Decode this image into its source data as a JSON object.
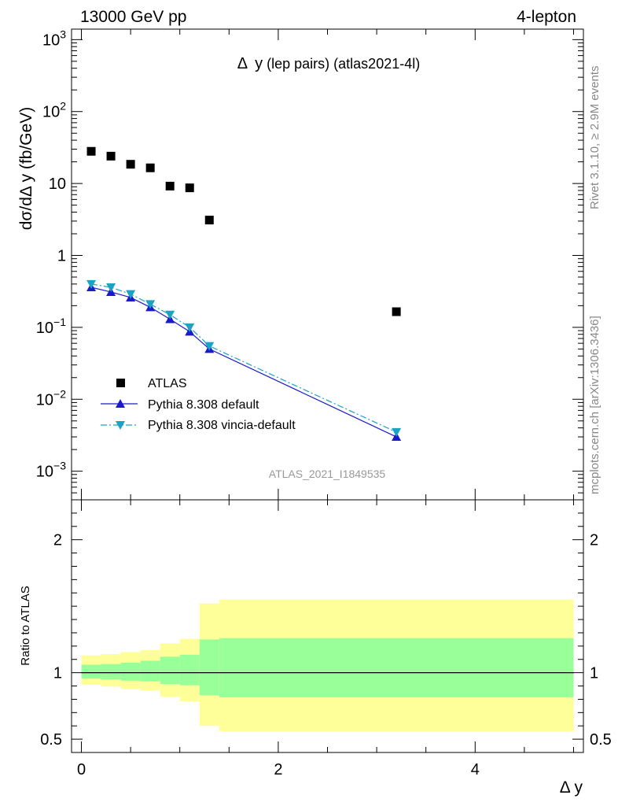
{
  "header": {
    "left": "13000 GeV pp",
    "right": "4-lepton"
  },
  "plot_title": {
    "delta": "Δ",
    "var": "y",
    "rest": "(lep pairs) (atlas2021-4l)"
  },
  "side_text": {
    "rivet": "Rivet 3.1.10, ≥ 2.9M events",
    "mcplots": "mcplots.cern.ch [arXiv:1306.3436]"
  },
  "analysis_label": "ATLAS_2021_I1849535",
  "colors": {
    "data": "#000000",
    "pythia_default": "#1a1acc",
    "vincia": "#1aa3c3",
    "band_inner": "#99ff99",
    "band_outer": "#ffff99"
  },
  "chart_data": [
    {
      "type": "scatter",
      "yscale": "log",
      "ylabel": "dσ/dΔ y (fb/GeV)",
      "xlim": [
        -0.1,
        5.1
      ],
      "ylim": [
        0.0004,
        1400
      ],
      "y_ticks": [
        {
          "base": "10",
          "exp": "3",
          "value": 1000
        },
        {
          "base": "10",
          "exp": "2",
          "value": 100
        },
        {
          "base": "10",
          "exp": "",
          "value": 10
        },
        {
          "base": "1",
          "exp": "",
          "value": 1
        },
        {
          "base": "10",
          "exp": "−1",
          "value": 0.1
        },
        {
          "base": "10",
          "exp": "−2",
          "value": 0.01
        },
        {
          "base": "10",
          "exp": "−3",
          "value": 0.001
        }
      ],
      "legend": {
        "position": "lower-left",
        "entries": [
          "ATLAS",
          "Pythia 8.308 default",
          "Pythia 8.308 vincia-default"
        ]
      },
      "series": [
        {
          "name": "ATLAS",
          "style": "markers-square",
          "x": [
            0.1,
            0.3,
            0.5,
            0.7,
            0.9,
            1.1,
            1.3,
            3.2
          ],
          "y": [
            28,
            24,
            18.5,
            16.5,
            9.2,
            8.7,
            3.1,
            0.165
          ]
        },
        {
          "name": "Pythia 8.308 default",
          "style": "line-triangle-up",
          "x": [
            0.1,
            0.3,
            0.5,
            0.7,
            0.9,
            1.1,
            1.3,
            3.2
          ],
          "y": [
            0.36,
            0.31,
            0.26,
            0.19,
            0.13,
            0.087,
            0.05,
            0.003
          ]
        },
        {
          "name": "Pythia 8.308 vincia-default",
          "style": "dashdot-triangle-down",
          "x": [
            0.1,
            0.3,
            0.5,
            0.7,
            0.9,
            1.1,
            1.3,
            3.2
          ],
          "y": [
            0.4,
            0.36,
            0.29,
            0.21,
            0.15,
            0.1,
            0.055,
            0.0035
          ]
        }
      ]
    },
    {
      "type": "area",
      "ylabel": "Ratio to ATLAS",
      "xlabel": "Δ y",
      "xlim": [
        -0.1,
        5.1
      ],
      "ylim": [
        0.4,
        2.3
      ],
      "y_ticks": [
        "0.5",
        "1",
        "2"
      ],
      "x_ticks": [
        "0",
        "2",
        "4"
      ],
      "reference_line": 1,
      "bands": {
        "bin_edges": [
          0,
          0.2,
          0.4,
          0.6,
          0.8,
          1.0,
          1.2,
          1.4,
          5.0
        ],
        "inner_low": [
          0.955,
          0.95,
          0.94,
          0.935,
          0.915,
          0.905,
          0.83,
          0.815
        ],
        "inner_high": [
          1.06,
          1.065,
          1.075,
          1.09,
          1.12,
          1.135,
          1.25,
          1.26
        ],
        "outer_low": [
          0.91,
          0.895,
          0.88,
          0.865,
          0.82,
          0.785,
          0.6,
          0.56
        ],
        "outer_high": [
          1.13,
          1.14,
          1.155,
          1.17,
          1.22,
          1.255,
          1.52,
          1.55
        ]
      }
    }
  ]
}
